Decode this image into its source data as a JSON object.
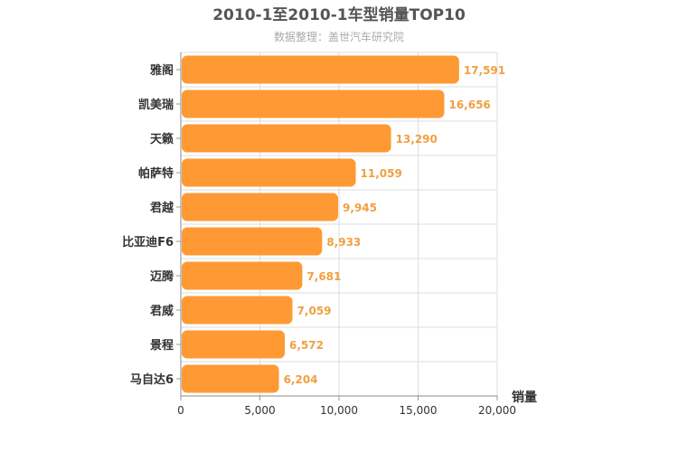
{
  "chart_data": {
    "type": "bar",
    "orientation": "horizontal",
    "title": "2010-1至2010-1车型销量TOP10",
    "subtitle": "数据整理：盖世汽车研究院",
    "categories": [
      "雅阁",
      "凯美瑞",
      "天籁",
      "帕萨特",
      "君越",
      "比亚迪F6",
      "迈腾",
      "君威",
      "景程",
      "马自达6"
    ],
    "values": [
      17591,
      16656,
      13290,
      11059,
      9945,
      8933,
      7681,
      7059,
      6572,
      6204
    ],
    "value_labels": [
      "17,591",
      "16,656",
      "13,290",
      "11,059",
      "9,945",
      "8,933",
      "7,681",
      "7,059",
      "6,572",
      "6,204"
    ],
    "xlabel": "销量",
    "xlim": [
      0,
      20000
    ],
    "xticks": [
      0,
      5000,
      10000,
      15000,
      20000
    ],
    "xtick_labels": [
      "0",
      "5,000",
      "10,000",
      "15,000",
      "20,000"
    ],
    "grid": true,
    "bar_color": "#ff9933",
    "label_color": "#f0a040"
  }
}
